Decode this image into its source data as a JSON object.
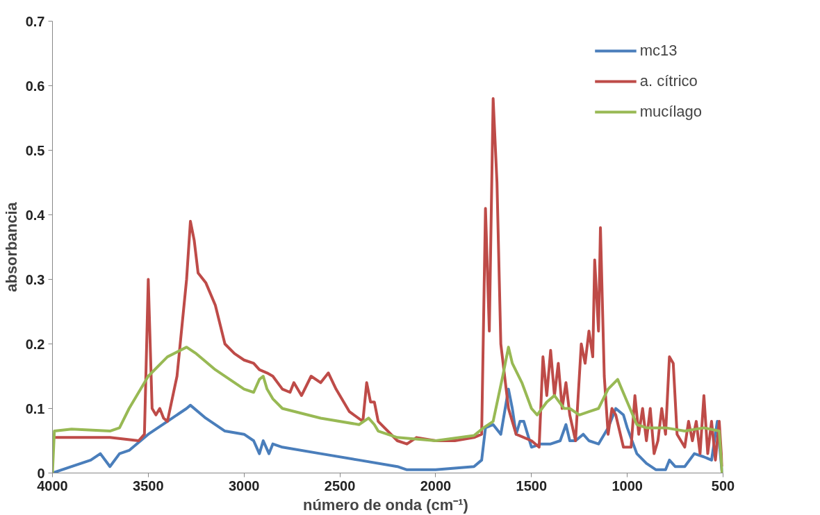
{
  "chart_data": {
    "type": "line",
    "xlabel": "número  de onda (cm⁻¹)",
    "ylabel": "absorbancia",
    "xlim": [
      4000,
      500
    ],
    "xticks": [
      4000,
      3500,
      3000,
      2500,
      2000,
      1500,
      1000,
      500
    ],
    "ylim": [
      0,
      0.7
    ],
    "yticks": [
      0,
      0.1,
      0.2,
      0.3,
      0.4,
      0.5,
      0.6,
      0.7
    ],
    "grid": false,
    "legend": "top right",
    "marker": "none",
    "line_style": "solid",
    "series": [
      {
        "name": "mc13",
        "color": "#4a7ebb",
        "x": [
          4000,
          3900,
          3800,
          3750,
          3700,
          3650,
          3600,
          3500,
          3400,
          3300,
          3280,
          3200,
          3100,
          3000,
          2950,
          2920,
          2900,
          2870,
          2850,
          2800,
          2600,
          2400,
          2200,
          2150,
          2000,
          1800,
          1760,
          1740,
          1700,
          1660,
          1620,
          1600,
          1580,
          1560,
          1540,
          1500,
          1450,
          1400,
          1350,
          1320,
          1300,
          1270,
          1230,
          1200,
          1150,
          1100,
          1060,
          1020,
          1000,
          950,
          900,
          850,
          800,
          780,
          750,
          700,
          650,
          600,
          560,
          530,
          505
        ],
        "values": [
          0.0,
          0.01,
          0.02,
          0.03,
          0.01,
          0.03,
          0.035,
          0.06,
          0.08,
          0.1,
          0.105,
          0.085,
          0.065,
          0.06,
          0.05,
          0.03,
          0.05,
          0.03,
          0.045,
          0.04,
          0.03,
          0.02,
          0.01,
          0.005,
          0.005,
          0.01,
          0.02,
          0.07,
          0.075,
          0.06,
          0.13,
          0.1,
          0.06,
          0.08,
          0.08,
          0.04,
          0.045,
          0.045,
          0.05,
          0.075,
          0.05,
          0.05,
          0.06,
          0.05,
          0.045,
          0.07,
          0.1,
          0.09,
          0.07,
          0.03,
          0.015,
          0.005,
          0.005,
          0.02,
          0.01,
          0.01,
          0.03,
          0.025,
          0.02,
          0.08,
          0.0
        ]
      },
      {
        "name": "a. cítrico",
        "color": "#be4b48",
        "x": [
          4000,
          3900,
          3700,
          3550,
          3520,
          3500,
          3490,
          3480,
          3460,
          3440,
          3420,
          3400,
          3350,
          3300,
          3280,
          3260,
          3240,
          3200,
          3150,
          3100,
          3050,
          3000,
          2950,
          2920,
          2880,
          2850,
          2800,
          2760,
          2740,
          2700,
          2650,
          2600,
          2560,
          2520,
          2450,
          2380,
          2360,
          2340,
          2320,
          2300,
          2200,
          2150,
          2100,
          2000,
          1900,
          1800,
          1760,
          1740,
          1720,
          1700,
          1680,
          1660,
          1620,
          1580,
          1500,
          1460,
          1440,
          1420,
          1400,
          1380,
          1360,
          1340,
          1320,
          1300,
          1270,
          1240,
          1220,
          1200,
          1180,
          1170,
          1150,
          1140,
          1120,
          1100,
          1080,
          1060,
          1020,
          980,
          960,
          940,
          920,
          900,
          880,
          860,
          840,
          820,
          800,
          780,
          760,
          740,
          700,
          680,
          660,
          640,
          620,
          600,
          580,
          560,
          540,
          520,
          505
        ],
        "values": [
          0.055,
          0.055,
          0.055,
          0.05,
          0.06,
          0.3,
          0.2,
          0.1,
          0.09,
          0.1,
          0.085,
          0.08,
          0.15,
          0.3,
          0.39,
          0.36,
          0.31,
          0.295,
          0.26,
          0.2,
          0.185,
          0.175,
          0.17,
          0.16,
          0.155,
          0.15,
          0.13,
          0.125,
          0.14,
          0.12,
          0.15,
          0.14,
          0.155,
          0.13,
          0.095,
          0.08,
          0.14,
          0.11,
          0.11,
          0.08,
          0.05,
          0.045,
          0.055,
          0.05,
          0.05,
          0.055,
          0.06,
          0.41,
          0.22,
          0.58,
          0.45,
          0.2,
          0.1,
          0.06,
          0.05,
          0.04,
          0.18,
          0.12,
          0.19,
          0.12,
          0.17,
          0.1,
          0.14,
          0.09,
          0.05,
          0.2,
          0.17,
          0.22,
          0.18,
          0.33,
          0.22,
          0.38,
          0.15,
          0.06,
          0.1,
          0.09,
          0.04,
          0.04,
          0.12,
          0.06,
          0.1,
          0.05,
          0.1,
          0.03,
          0.05,
          0.1,
          0.06,
          0.18,
          0.17,
          0.06,
          0.04,
          0.08,
          0.05,
          0.08,
          0.03,
          0.12,
          0.03,
          0.08,
          0.02,
          0.08,
          0.01
        ]
      },
      {
        "name": "mucílago",
        "color": "#98b954",
        "x": [
          4000,
          3990,
          3900,
          3700,
          3650,
          3600,
          3500,
          3400,
          3300,
          3250,
          3150,
          3000,
          2950,
          2920,
          2900,
          2880,
          2850,
          2800,
          2600,
          2400,
          2350,
          2320,
          2300,
          2200,
          2000,
          1800,
          1750,
          1700,
          1650,
          1620,
          1600,
          1550,
          1500,
          1470,
          1420,
          1380,
          1330,
          1300,
          1250,
          1200,
          1150,
          1100,
          1050,
          1000,
          950,
          900,
          800,
          700,
          600,
          520,
          505
        ],
        "values": [
          0.0,
          0.065,
          0.068,
          0.065,
          0.07,
          0.1,
          0.15,
          0.18,
          0.195,
          0.185,
          0.16,
          0.13,
          0.125,
          0.145,
          0.15,
          0.13,
          0.115,
          0.1,
          0.085,
          0.075,
          0.085,
          0.075,
          0.065,
          0.055,
          0.05,
          0.058,
          0.07,
          0.08,
          0.15,
          0.195,
          0.17,
          0.14,
          0.1,
          0.09,
          0.11,
          0.12,
          0.1,
          0.1,
          0.09,
          0.095,
          0.1,
          0.13,
          0.145,
          0.11,
          0.075,
          0.07,
          0.07,
          0.065,
          0.07,
          0.065,
          0.0
        ]
      }
    ]
  }
}
